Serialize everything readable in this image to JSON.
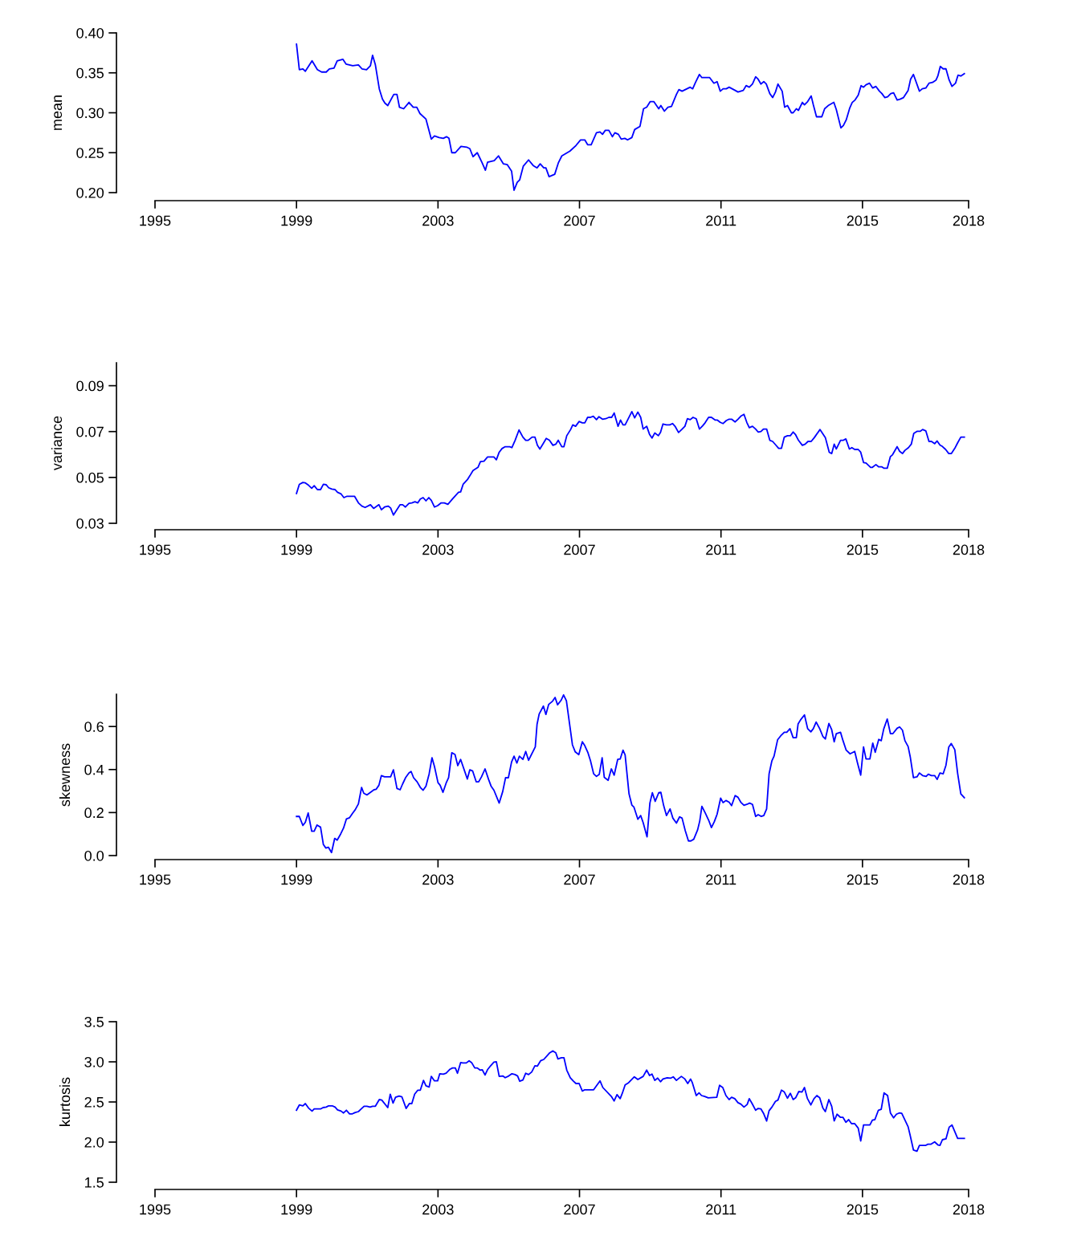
{
  "chart_data": [
    {
      "type": "line",
      "ylabel": "mean",
      "xlim": [
        1995,
        2018
      ],
      "xticks": [
        1995,
        1999,
        2003,
        2007,
        2011,
        2015,
        2018
      ],
      "ylim": [
        0.2,
        0.4
      ],
      "grid": false,
      "yticks": [
        {
          "value": 0.2,
          "label": "0.20"
        },
        {
          "value": 0.25,
          "label": "0.25"
        },
        {
          "value": 0.3,
          "label": "0.30"
        },
        {
          "value": 0.35,
          "label": "0.35"
        },
        {
          "value": 0.4,
          "label": "0.40"
        }
      ],
      "series": [
        {
          "color": "#0000ff",
          "x": [
            1999.0,
            1999.08,
            1999.18,
            1999.25,
            1999.44,
            1999.59,
            1999.71,
            1999.84,
            1999.93,
            2000.06,
            2000.15,
            2000.31,
            2000.4,
            2000.59,
            2000.75,
            2000.85,
            2000.98,
            2001.09,
            2001.15,
            2001.23,
            2001.34,
            2001.43,
            2001.5,
            2001.58,
            2001.75,
            2001.84,
            2001.91,
            2002.03,
            2002.18,
            2002.3,
            2002.4,
            2002.49,
            2002.66,
            2002.81,
            2002.9,
            2003.03,
            2003.15,
            2003.24,
            2003.31,
            2003.39,
            2003.49,
            2003.65,
            2003.81,
            2003.9,
            2003.99,
            2004.11,
            2004.24,
            2004.34,
            2004.4,
            2004.59,
            2004.71,
            2004.85,
            2004.96,
            2005.08,
            2005.15,
            2005.24,
            2005.31,
            2005.41,
            2005.56,
            2005.69,
            2005.8,
            2005.89,
            2005.99,
            2006.05,
            2006.14,
            2006.3,
            2006.4,
            2006.5,
            2006.73,
            2006.9,
            2007.03,
            2007.15,
            2007.23,
            2007.33,
            2007.48,
            2007.58,
            2007.65,
            2007.73,
            2007.83,
            2007.93,
            2008.0,
            2008.1,
            2008.18,
            2008.28,
            2008.36,
            2008.48,
            2008.56,
            2008.71,
            2008.81,
            2008.9,
            2009.0,
            2009.1,
            2009.24,
            2009.3,
            2009.4,
            2009.5,
            2009.6,
            2009.74,
            2009.81,
            2009.9,
            2010.13,
            2010.2,
            2010.28,
            2010.39,
            2010.46,
            2010.68,
            2010.8,
            2010.89,
            2010.98,
            2011.06,
            2011.15,
            2011.23,
            2011.4,
            2011.48,
            2011.63,
            2011.71,
            2011.8,
            2011.89,
            2011.98,
            2012.05,
            2012.13,
            2012.21,
            2012.28,
            2012.38,
            2012.46,
            2012.54,
            2012.61,
            2012.73,
            2012.8,
            2012.88,
            2012.99,
            2013.04,
            2013.13,
            2013.19,
            2013.3,
            2013.36,
            2013.45,
            2013.55,
            2013.61,
            2013.7,
            2013.85,
            2013.93,
            2014.03,
            2014.19,
            2014.26,
            2014.39,
            2014.46,
            2014.54,
            2014.64,
            2014.71,
            2014.79,
            2014.88,
            2014.96,
            2015.03,
            2015.1,
            2015.2,
            2015.29,
            2015.38,
            2015.48,
            2015.55,
            2015.63,
            2015.71,
            2015.8,
            2015.88,
            2015.98,
            2016.06,
            2016.16,
            2016.29,
            2016.36,
            2016.44,
            2016.61,
            2016.69,
            2016.79,
            2016.88,
            2016.98,
            2017.08,
            2017.13,
            2017.2,
            2017.28,
            2017.36,
            2017.45,
            2017.53,
            2017.63,
            2017.7,
            2017.78,
            2017.88
          ],
          "values": [
            0.386,
            0.354,
            0.355,
            0.352,
            0.365,
            0.354,
            0.351,
            0.351,
            0.355,
            0.356,
            0.365,
            0.367,
            0.361,
            0.359,
            0.36,
            0.355,
            0.354,
            0.359,
            0.372,
            0.36,
            0.33,
            0.317,
            0.312,
            0.309,
            0.323,
            0.323,
            0.307,
            0.305,
            0.313,
            0.307,
            0.307,
            0.299,
            0.292,
            0.267,
            0.271,
            0.269,
            0.268,
            0.27,
            0.268,
            0.25,
            0.25,
            0.258,
            0.257,
            0.255,
            0.245,
            0.25,
            0.238,
            0.228,
            0.238,
            0.24,
            0.246,
            0.236,
            0.235,
            0.227,
            0.203,
            0.213,
            0.216,
            0.233,
            0.241,
            0.234,
            0.231,
            0.236,
            0.231,
            0.231,
            0.22,
            0.223,
            0.237,
            0.246,
            0.252,
            0.259,
            0.266,
            0.266,
            0.26,
            0.26,
            0.275,
            0.276,
            0.273,
            0.278,
            0.278,
            0.27,
            0.275,
            0.273,
            0.267,
            0.268,
            0.266,
            0.269,
            0.279,
            0.283,
            0.305,
            0.307,
            0.314,
            0.314,
            0.305,
            0.309,
            0.302,
            0.307,
            0.308,
            0.323,
            0.329,
            0.327,
            0.332,
            0.33,
            0.338,
            0.348,
            0.344,
            0.344,
            0.337,
            0.339,
            0.327,
            0.33,
            0.33,
            0.332,
            0.328,
            0.326,
            0.328,
            0.334,
            0.332,
            0.336,
            0.345,
            0.342,
            0.336,
            0.339,
            0.336,
            0.324,
            0.319,
            0.326,
            0.336,
            0.327,
            0.307,
            0.309,
            0.3,
            0.3,
            0.305,
            0.303,
            0.313,
            0.31,
            0.314,
            0.321,
            0.31,
            0.295,
            0.295,
            0.305,
            0.309,
            0.313,
            0.304,
            0.281,
            0.284,
            0.291,
            0.306,
            0.313,
            0.316,
            0.322,
            0.334,
            0.332,
            0.335,
            0.337,
            0.331,
            0.333,
            0.327,
            0.324,
            0.319,
            0.32,
            0.324,
            0.325,
            0.316,
            0.317,
            0.319,
            0.328,
            0.342,
            0.348,
            0.327,
            0.33,
            0.331,
            0.337,
            0.338,
            0.341,
            0.346,
            0.358,
            0.355,
            0.355,
            0.341,
            0.333,
            0.337,
            0.347,
            0.346,
            0.349
          ]
        }
      ]
    },
    {
      "type": "line",
      "ylabel": "variance",
      "xlim": [
        1995,
        2018
      ],
      "xticks": [
        1995,
        1999,
        2003,
        2007,
        2011,
        2015,
        2018
      ],
      "ylim": [
        0.03,
        0.1
      ],
      "grid": false,
      "yticks": [
        {
          "value": 0.03,
          "label": "0.03"
        },
        {
          "value": 0.05,
          "label": "0.05"
        },
        {
          "value": 0.07,
          "label": "0.07"
        },
        {
          "value": 0.09,
          "label": "0.09"
        }
      ],
      "series": [
        {
          "color": "#0000ff",
          "x": [
            1999.0,
            1999.08,
            1999.18,
            1999.25,
            1999.34,
            1999.43,
            1999.5,
            1999.59,
            1999.68,
            1999.76,
            1999.84,
            1999.91,
            2000.0,
            2000.09,
            2000.16,
            2000.26,
            2000.34,
            2000.43,
            2000.64,
            2000.75,
            2000.85,
            2000.94,
            2001.09,
            2001.18,
            2001.33,
            2001.4,
            2001.49,
            2001.59,
            2001.66,
            2001.74,
            2001.93,
            2002.0,
            2002.08,
            2002.18,
            2002.26,
            2002.35,
            2002.43,
            2002.5,
            2002.58,
            2002.66,
            2002.74,
            2002.81,
            2002.9,
            2002.99,
            2003.09,
            2003.18,
            2003.28,
            2003.41,
            2003.58,
            2003.64,
            2003.71,
            2003.83,
            2003.9,
            2003.99,
            2004.13,
            2004.2,
            2004.3,
            2004.4,
            2004.58,
            2004.65,
            2004.73,
            2004.81,
            2004.9,
            2005.03,
            2005.09,
            2005.18,
            2005.29,
            2005.4,
            2005.48,
            2005.55,
            2005.66,
            2005.74,
            2005.81,
            2005.88,
            2005.98,
            2006.06,
            2006.15,
            2006.25,
            2006.33,
            2006.4,
            2006.5,
            2006.56,
            2006.64,
            2006.75,
            2006.81,
            2006.89,
            2006.99,
            2007.08,
            2007.15,
            2007.23,
            2007.31,
            2007.39,
            2007.48,
            2007.55,
            2007.65,
            2007.74,
            2007.83,
            2007.91,
            2007.98,
            2008.09,
            2008.16,
            2008.23,
            2008.29,
            2008.48,
            2008.56,
            2008.65,
            2008.73,
            2008.8,
            2008.9,
            2008.98,
            2009.05,
            2009.13,
            2009.23,
            2009.29,
            2009.36,
            2009.46,
            2009.55,
            2009.63,
            2009.71,
            2009.8,
            2009.89,
            2009.98,
            2010.05,
            2010.13,
            2010.21,
            2010.3,
            2010.39,
            2010.48,
            2010.55,
            2010.65,
            2010.73,
            2010.84,
            2010.9,
            2010.98,
            2011.06,
            2011.15,
            2011.23,
            2011.3,
            2011.4,
            2011.48,
            2011.56,
            2011.65,
            2011.73,
            2011.8,
            2011.89,
            2011.98,
            2012.05,
            2012.13,
            2012.2,
            2012.29,
            2012.38,
            2012.46,
            2012.54,
            2012.63,
            2012.71,
            2012.79,
            2012.88,
            2012.96,
            2013.04,
            2013.11,
            2013.19,
            2013.3,
            2013.38,
            2013.46,
            2013.55,
            2013.64,
            2013.8,
            2013.95,
            2014.06,
            2014.13,
            2014.2,
            2014.26,
            2014.38,
            2014.46,
            2014.53,
            2014.63,
            2014.7,
            2014.78,
            2014.88,
            2014.95,
            2015.03,
            2015.1,
            2015.23,
            2015.28,
            2015.38,
            2015.46,
            2015.55,
            2015.61,
            2015.7,
            2015.79,
            2015.85,
            2015.98,
            2016.05,
            2016.13,
            2016.2,
            2016.3,
            2016.38,
            2016.45,
            2016.54,
            2016.63,
            2016.7,
            2016.79,
            2016.88,
            2016.95,
            2017.04,
            2017.11,
            2017.19,
            2017.26,
            2017.35,
            2017.44,
            2017.51,
            2017.61,
            2017.69,
            2017.78,
            2017.88
          ],
          "values": [
            0.043,
            0.047,
            0.0478,
            0.0476,
            0.0466,
            0.0453,
            0.0464,
            0.0447,
            0.0447,
            0.047,
            0.0468,
            0.0455,
            0.0449,
            0.0447,
            0.0435,
            0.0428,
            0.0412,
            0.0418,
            0.0418,
            0.0389,
            0.0375,
            0.0369,
            0.0381,
            0.0365,
            0.0381,
            0.0359,
            0.0371,
            0.0375,
            0.0367,
            0.0336,
            0.0381,
            0.0381,
            0.0371,
            0.0387,
            0.0389,
            0.0394,
            0.0389,
            0.0406,
            0.0412,
            0.0398,
            0.0412,
            0.04,
            0.0371,
            0.0377,
            0.0389,
            0.0389,
            0.0383,
            0.0406,
            0.0435,
            0.0437,
            0.047,
            0.049,
            0.0507,
            0.053,
            0.0544,
            0.0569,
            0.0571,
            0.0589,
            0.0589,
            0.0577,
            0.061,
            0.0626,
            0.0634,
            0.0634,
            0.063,
            0.0662,
            0.0707,
            0.0676,
            0.0662,
            0.0662,
            0.0676,
            0.0676,
            0.064,
            0.0624,
            0.0649,
            0.067,
            0.0662,
            0.064,
            0.0645,
            0.0662,
            0.0634,
            0.0634,
            0.0682,
            0.0709,
            0.0729,
            0.0723,
            0.0744,
            0.0738,
            0.0738,
            0.0762,
            0.0762,
            0.0767,
            0.0752,
            0.0765,
            0.0754,
            0.0756,
            0.0762,
            0.0762,
            0.0781,
            0.0723,
            0.075,
            0.0729,
            0.0729,
            0.0787,
            0.076,
            0.0785,
            0.0762,
            0.0711,
            0.0723,
            0.0688,
            0.0672,
            0.0694,
            0.0682,
            0.0696,
            0.0733,
            0.0729,
            0.0729,
            0.0735,
            0.0721,
            0.0696,
            0.0709,
            0.0723,
            0.0756,
            0.0752,
            0.0762,
            0.0756,
            0.0711,
            0.0725,
            0.0738,
            0.0762,
            0.0762,
            0.075,
            0.075,
            0.074,
            0.0735,
            0.0748,
            0.0754,
            0.0754,
            0.0742,
            0.0754,
            0.0767,
            0.0775,
            0.074,
            0.0717,
            0.0723,
            0.0711,
            0.0698,
            0.07,
            0.0711,
            0.0711,
            0.0662,
            0.0657,
            0.0643,
            0.0627,
            0.0627,
            0.0676,
            0.0682,
            0.0682,
            0.0698,
            0.0686,
            0.0662,
            0.064,
            0.0645,
            0.0657,
            0.0657,
            0.0674,
            0.0709,
            0.0674,
            0.061,
            0.0604,
            0.0645,
            0.0624,
            0.0662,
            0.0662,
            0.0668,
            0.0624,
            0.063,
            0.0622,
            0.0622,
            0.061,
            0.0565,
            0.0563,
            0.0544,
            0.0544,
            0.0556,
            0.0546,
            0.0546,
            0.054,
            0.054,
            0.0591,
            0.0599,
            0.0634,
            0.0614,
            0.0604,
            0.0618,
            0.063,
            0.0645,
            0.0692,
            0.0701,
            0.0701,
            0.0709,
            0.0703,
            0.0657,
            0.0657,
            0.0647,
            0.0659,
            0.0641,
            0.0635,
            0.0622,
            0.0604,
            0.0604,
            0.0627,
            0.0651,
            0.0676,
            0.0676
          ]
        }
      ]
    },
    {
      "type": "line",
      "ylabel": "skewness",
      "xlim": [
        1995,
        2018
      ],
      "xticks": [
        1995,
        1999,
        2003,
        2007,
        2011,
        2015,
        2018
      ],
      "ylim": [
        0.0,
        0.75
      ],
      "grid": false,
      "yticks": [
        {
          "value": 0.0,
          "label": "0.0"
        },
        {
          "value": 0.2,
          "label": "0.2"
        },
        {
          "value": 0.4,
          "label": "0.4"
        },
        {
          "value": 0.6,
          "label": "0.6"
        }
      ],
      "series": [
        {
          "color": "#0000ff",
          "x": [
            1999.0,
            1999.08,
            1999.18,
            1999.25,
            1999.33,
            1999.43,
            1999.5,
            1999.58,
            1999.68,
            1999.76,
            1999.83,
            1999.9,
            1999.99,
            2000.08,
            2000.15,
            2000.25,
            2000.33,
            2000.41,
            2000.5,
            2000.59,
            2000.66,
            2000.75,
            2000.84,
            2000.9,
            2000.99,
            2001.09,
            2001.19,
            2001.25,
            2001.33,
            2001.4,
            2001.49,
            2001.66,
            2001.74,
            2001.84,
            2001.93,
            2002.0,
            2002.09,
            2002.18,
            2002.24,
            2002.31,
            2002.41,
            2002.5,
            2002.58,
            2002.66,
            2002.75,
            2002.83,
            2002.9,
            2003.0,
            2003.06,
            2003.14,
            2003.23,
            2003.3,
            2003.39,
            2003.48,
            2003.56,
            2003.64,
            2003.83,
            2003.9,
            2003.98,
            2004.08,
            2004.15,
            2004.23,
            2004.33,
            2004.43,
            2004.5,
            2004.58,
            2004.73,
            2004.83,
            2004.91,
            2004.99,
            2005.08,
            2005.15,
            2005.23,
            2005.3,
            2005.4,
            2005.48,
            2005.56,
            2005.75,
            2005.8,
            2005.86,
            2005.98,
            2006.05,
            2006.13,
            2006.24,
            2006.31,
            2006.38,
            2006.48,
            2006.55,
            2006.63,
            2006.8,
            2006.88,
            2006.98,
            2007.08,
            2007.15,
            2007.24,
            2007.31,
            2007.4,
            2007.48,
            2007.56,
            2007.64,
            2007.7,
            2007.81,
            2007.9,
            2007.98,
            2008.08,
            2008.15,
            2008.23,
            2008.29,
            2008.4,
            2008.48,
            2008.54,
            2008.65,
            2008.73,
            2008.8,
            2008.91,
            2008.99,
            2009.06,
            2009.14,
            2009.24,
            2009.3,
            2009.38,
            2009.46,
            2009.56,
            2009.64,
            2009.74,
            2009.83,
            2009.9,
            2009.99,
            2010.08,
            2010.15,
            2010.23,
            2010.34,
            2010.4,
            2010.46,
            2010.56,
            2010.65,
            2010.73,
            2010.81,
            2010.89,
            2010.99,
            2011.06,
            2011.14,
            2011.23,
            2011.3,
            2011.4,
            2011.48,
            2011.56,
            2011.65,
            2011.73,
            2011.81,
            2011.89,
            2011.98,
            2012.05,
            2012.14,
            2012.21,
            2012.29,
            2012.36,
            2012.44,
            2012.5,
            2012.6,
            2012.69,
            2012.79,
            2012.86,
            2012.95,
            2013.04,
            2013.13,
            2013.18,
            2013.25,
            2013.36,
            2013.45,
            2013.54,
            2013.61,
            2013.69,
            2013.79,
            2013.88,
            2013.95,
            2014.05,
            2014.13,
            2014.2,
            2014.26,
            2014.38,
            2014.45,
            2014.54,
            2014.65,
            2014.78,
            2014.86,
            2014.95,
            2015.03,
            2015.1,
            2015.21,
            2015.29,
            2015.36,
            2015.46,
            2015.53,
            2015.6,
            2015.7,
            2015.79,
            2015.86,
            2015.98,
            2016.05,
            2016.13,
            2016.2,
            2016.29,
            2016.35,
            2016.44,
            2016.54,
            2016.61,
            2016.7,
            2016.8,
            2016.86,
            2016.95,
            2017.04,
            2017.11,
            2017.19,
            2017.28,
            2017.36,
            2017.44,
            2017.51,
            2017.61,
            2017.69,
            2017.78,
            2017.88
          ],
          "values": [
            0.182,
            0.182,
            0.14,
            0.155,
            0.198,
            0.113,
            0.113,
            0.142,
            0.132,
            0.051,
            0.035,
            0.039,
            0.014,
            0.08,
            0.072,
            0.101,
            0.128,
            0.17,
            0.176,
            0.198,
            0.213,
            0.24,
            0.317,
            0.29,
            0.282,
            0.294,
            0.306,
            0.308,
            0.327,
            0.372,
            0.366,
            0.366,
            0.399,
            0.312,
            0.306,
            0.333,
            0.364,
            0.384,
            0.391,
            0.362,
            0.343,
            0.317,
            0.304,
            0.323,
            0.38,
            0.455,
            0.414,
            0.339,
            0.327,
            0.294,
            0.337,
            0.362,
            0.478,
            0.47,
            0.418,
            0.447,
            0.356,
            0.399,
            0.393,
            0.343,
            0.343,
            0.366,
            0.403,
            0.354,
            0.323,
            0.304,
            0.244,
            0.298,
            0.362,
            0.362,
            0.435,
            0.462,
            0.43,
            0.462,
            0.447,
            0.484,
            0.443,
            0.505,
            0.61,
            0.658,
            0.695,
            0.656,
            0.703,
            0.718,
            0.735,
            0.701,
            0.722,
            0.747,
            0.72,
            0.515,
            0.482,
            0.469,
            0.529,
            0.511,
            0.478,
            0.441,
            0.38,
            0.368,
            0.378,
            0.455,
            0.364,
            0.35,
            0.403,
            0.374,
            0.447,
            0.449,
            0.49,
            0.468,
            0.287,
            0.235,
            0.225,
            0.169,
            0.186,
            0.153,
            0.087,
            0.244,
            0.292,
            0.252,
            0.292,
            0.294,
            0.232,
            0.186,
            0.217,
            0.174,
            0.151,
            0.18,
            0.174,
            0.116,
            0.068,
            0.068,
            0.076,
            0.12,
            0.161,
            0.229,
            0.196,
            0.165,
            0.13,
            0.157,
            0.192,
            0.267,
            0.246,
            0.256,
            0.248,
            0.232,
            0.279,
            0.271,
            0.248,
            0.234,
            0.238,
            0.244,
            0.238,
            0.182,
            0.19,
            0.182,
            0.186,
            0.217,
            0.38,
            0.441,
            0.462,
            0.538,
            0.557,
            0.573,
            0.573,
            0.59,
            0.548,
            0.548,
            0.612,
            0.631,
            0.654,
            0.59,
            0.575,
            0.59,
            0.621,
            0.59,
            0.554,
            0.542,
            0.614,
            0.585,
            0.529,
            0.567,
            0.573,
            0.534,
            0.49,
            0.473,
            0.484,
            0.43,
            0.374,
            0.505,
            0.449,
            0.449,
            0.523,
            0.48,
            0.54,
            0.534,
            0.588,
            0.635,
            0.567,
            0.567,
            0.592,
            0.598,
            0.583,
            0.534,
            0.507,
            0.459,
            0.362,
            0.366,
            0.384,
            0.372,
            0.368,
            0.378,
            0.372,
            0.372,
            0.354,
            0.384,
            0.38,
            0.42,
            0.505,
            0.521,
            0.492,
            0.382,
            0.287,
            0.269
          ]
        }
      ]
    },
    {
      "type": "line",
      "ylabel": "kurtosis",
      "xlim": [
        1995,
        2018
      ],
      "xticks": [
        1995,
        1999,
        2003,
        2007,
        2011,
        2015,
        2018
      ],
      "ylim": [
        1.5,
        3.5
      ],
      "grid": false,
      "yticks": [
        {
          "value": 1.5,
          "label": "1.5"
        },
        {
          "value": 2.0,
          "label": "2.0"
        },
        {
          "value": 2.5,
          "label": "2.5"
        },
        {
          "value": 3.0,
          "label": "3.0"
        },
        {
          "value": 3.5,
          "label": "3.5"
        }
      ],
      "series": [
        {
          "color": "#0000ff",
          "x": [
            1999.0,
            1999.08,
            1999.18,
            1999.25,
            1999.34,
            1999.44,
            1999.5,
            1999.68,
            1999.75,
            1999.84,
            1999.91,
            2000.01,
            2000.09,
            2000.16,
            2000.26,
            2000.33,
            2000.41,
            2000.5,
            2000.58,
            2000.66,
            2000.75,
            2000.83,
            2000.91,
            2000.99,
            2001.08,
            2001.15,
            2001.23,
            2001.34,
            2001.41,
            2001.58,
            2001.65,
            2001.73,
            2001.8,
            2001.9,
            2001.98,
            2002.1,
            2002.19,
            2002.26,
            2002.34,
            2002.43,
            2002.5,
            2002.59,
            2002.66,
            2002.75,
            2002.81,
            2002.9,
            2002.99,
            2003.05,
            2003.15,
            2003.23,
            2003.34,
            2003.41,
            2003.49,
            2003.55,
            2003.64,
            2003.7,
            2003.8,
            2003.88,
            2003.95,
            2004.04,
            2004.11,
            2004.19,
            2004.25,
            2004.33,
            2004.4,
            2004.49,
            2004.58,
            2004.65,
            2004.73,
            2004.83,
            2004.9,
            2005.0,
            2005.09,
            2005.18,
            2005.25,
            2005.31,
            2005.4,
            2005.48,
            2005.56,
            2005.65,
            2005.74,
            2005.81,
            2005.9,
            2005.99,
            2006.08,
            2006.16,
            2006.25,
            2006.33,
            2006.39,
            2006.49,
            2006.56,
            2006.64,
            2006.74,
            2006.83,
            2006.9,
            2006.99,
            2007.08,
            2007.15,
            2007.23,
            2007.4,
            2007.58,
            2007.66,
            2007.9,
            2007.98,
            2008.06,
            2008.15,
            2008.21,
            2008.29,
            2008.39,
            2008.55,
            2008.65,
            2008.8,
            2008.9,
            2008.98,
            2009.05,
            2009.13,
            2009.21,
            2009.29,
            2009.36,
            2009.48,
            2009.58,
            2009.65,
            2009.74,
            2009.8,
            2009.88,
            2009.98,
            2010.06,
            2010.14,
            2010.19,
            2010.3,
            2010.38,
            2010.45,
            2010.54,
            2010.64,
            2010.88,
            2010.96,
            2011.05,
            2011.14,
            2011.23,
            2011.3,
            2011.39,
            2011.48,
            2011.56,
            2011.65,
            2011.74,
            2011.8,
            2011.88,
            2011.98,
            2012.05,
            2012.13,
            2012.21,
            2012.29,
            2012.36,
            2012.44,
            2012.54,
            2012.61,
            2012.71,
            2012.79,
            2012.88,
            2012.96,
            2013.04,
            2013.11,
            2013.2,
            2013.29,
            2013.36,
            2013.44,
            2013.54,
            2013.63,
            2013.71,
            2013.79,
            2013.88,
            2013.95,
            2014.05,
            2014.13,
            2014.2,
            2014.28,
            2014.38,
            2014.45,
            2014.53,
            2014.61,
            2014.69,
            2014.78,
            2014.88,
            2014.95,
            2015.03,
            2015.21,
            2015.28,
            2015.35,
            2015.45,
            2015.53,
            2015.61,
            2015.71,
            2015.79,
            2015.88,
            2015.96,
            2016.04,
            2016.11,
            2016.29,
            2016.35,
            2016.44,
            2016.54,
            2016.61,
            2016.78,
            2016.85,
            2016.94,
            2017.04,
            2017.14,
            2017.19,
            2017.26,
            2017.36,
            2017.45,
            2017.53,
            2017.69,
            2017.88
          ],
          "values": [
            2.397,
            2.463,
            2.452,
            2.48,
            2.424,
            2.386,
            2.413,
            2.413,
            2.43,
            2.436,
            2.452,
            2.452,
            2.436,
            2.402,
            2.386,
            2.363,
            2.397,
            2.352,
            2.352,
            2.369,
            2.38,
            2.413,
            2.447,
            2.447,
            2.436,
            2.447,
            2.447,
            2.53,
            2.524,
            2.43,
            2.597,
            2.486,
            2.558,
            2.574,
            2.563,
            2.419,
            2.48,
            2.48,
            2.597,
            2.647,
            2.647,
            2.769,
            2.702,
            2.686,
            2.819,
            2.763,
            2.763,
            2.852,
            2.847,
            2.858,
            2.908,
            2.924,
            2.924,
            2.858,
            2.991,
            2.986,
            2.986,
            3.013,
            2.991,
            2.924,
            2.924,
            2.897,
            2.902,
            2.836,
            2.902,
            2.952,
            2.997,
            3.002,
            2.819,
            2.824,
            2.802,
            2.824,
            2.852,
            2.841,
            2.824,
            2.758,
            2.774,
            2.858,
            2.841,
            2.874,
            2.952,
            2.947,
            3.013,
            3.03,
            3.074,
            3.113,
            3.136,
            3.113,
            3.036,
            3.052,
            3.052,
            2.897,
            2.802,
            2.758,
            2.73,
            2.73,
            2.636,
            2.652,
            2.652,
            2.652,
            2.763,
            2.68,
            2.569,
            2.513,
            2.591,
            2.541,
            2.608,
            2.713,
            2.741,
            2.813,
            2.78,
            2.819,
            2.897,
            2.83,
            2.847,
            2.769,
            2.797,
            2.752,
            2.786,
            2.802,
            2.797,
            2.813,
            2.769,
            2.791,
            2.819,
            2.786,
            2.73,
            2.786,
            2.741,
            2.58,
            2.613,
            2.58,
            2.569,
            2.552,
            2.558,
            2.708,
            2.68,
            2.58,
            2.53,
            2.558,
            2.541,
            2.491,
            2.474,
            2.436,
            2.469,
            2.541,
            2.48,
            2.397,
            2.419,
            2.413,
            2.352,
            2.263,
            2.391,
            2.436,
            2.508,
            2.524,
            2.647,
            2.624,
            2.547,
            2.608,
            2.53,
            2.552,
            2.63,
            2.624,
            2.68,
            2.547,
            2.463,
            2.541,
            2.58,
            2.552,
            2.424,
            2.38,
            2.53,
            2.447,
            2.263,
            2.347,
            2.308,
            2.308,
            2.247,
            2.28,
            2.23,
            2.23,
            2.174,
            2.013,
            2.213,
            2.213,
            2.274,
            2.28,
            2.397,
            2.408,
            2.613,
            2.58,
            2.363,
            2.302,
            2.347,
            2.363,
            2.358,
            2.191,
            2.08,
            1.902,
            1.886,
            1.958,
            1.958,
            1.974,
            1.974,
            2.002,
            1.963,
            1.958,
            2.03,
            2.041,
            2.186,
            2.213,
            2.047,
            2.047
          ]
        }
      ]
    }
  ]
}
